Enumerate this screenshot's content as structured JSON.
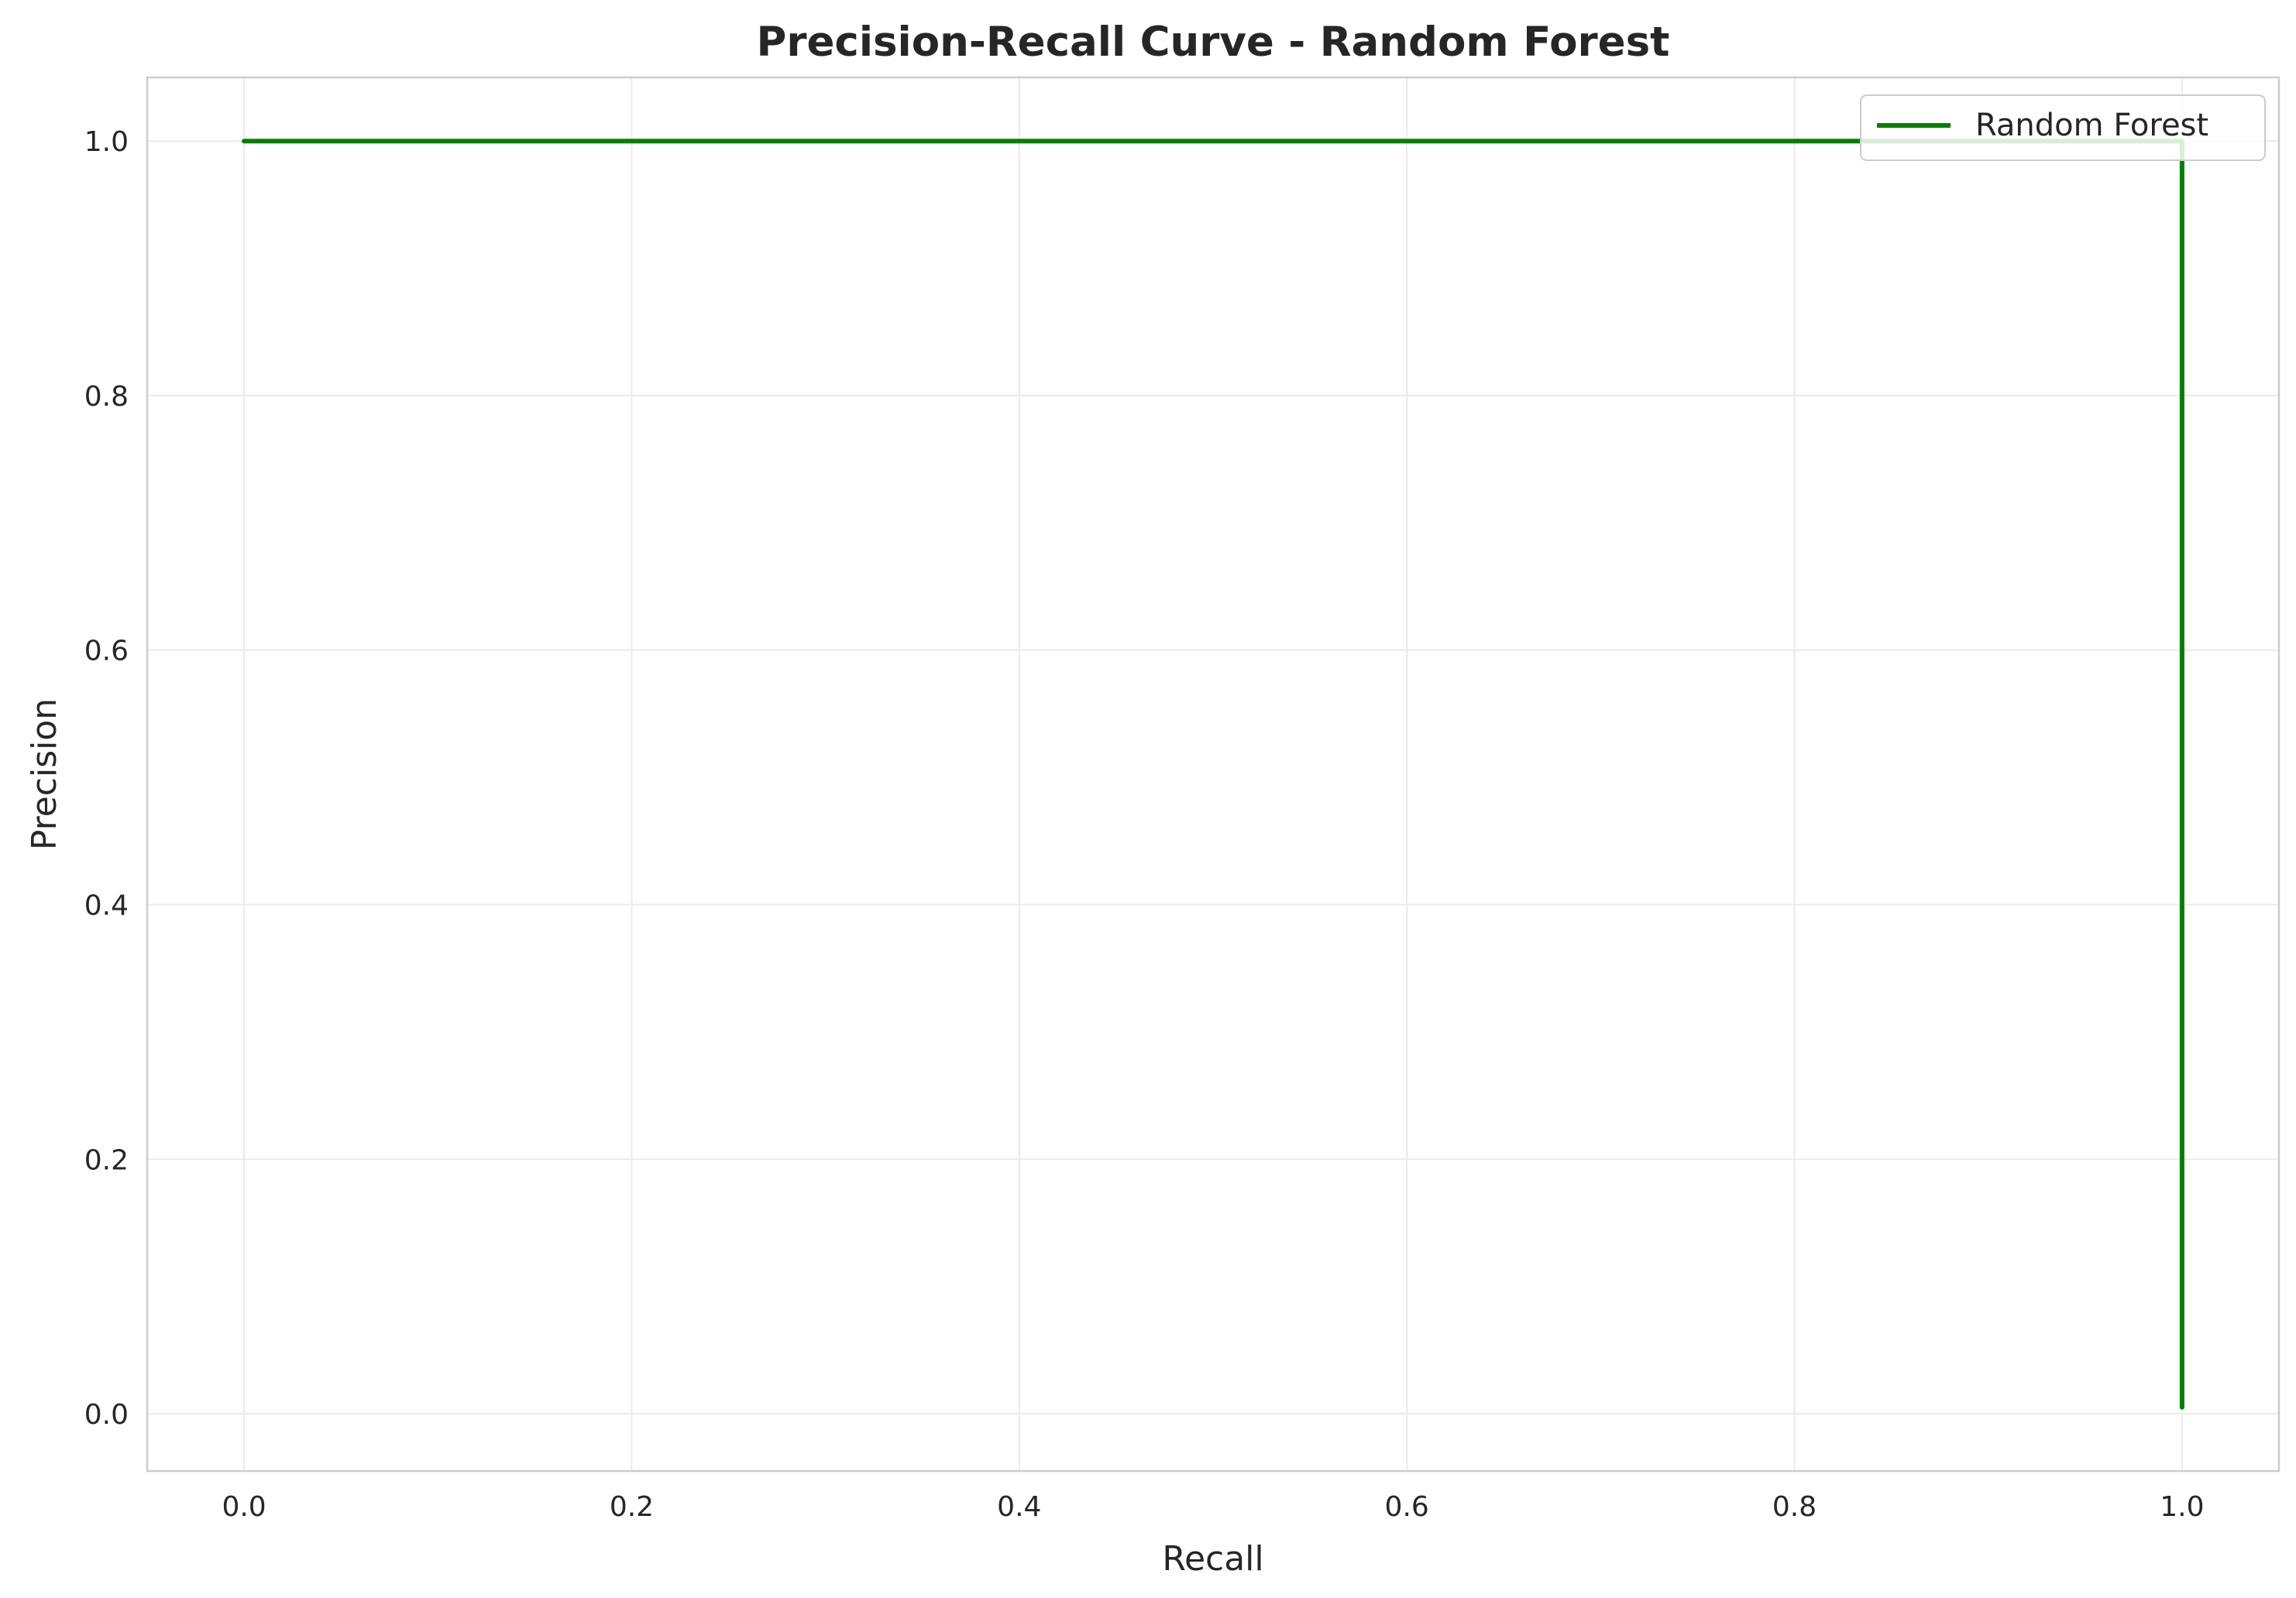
{
  "chart_data": {
    "type": "line",
    "title": "Precision-Recall Curve - Random Forest",
    "xlabel": "Recall",
    "ylabel": "Precision",
    "xlim": [
      -0.05,
      1.05
    ],
    "ylim": [
      -0.045,
      1.05
    ],
    "x_ticks": [
      "0.0",
      "0.2",
      "0.4",
      "0.6",
      "0.8",
      "1.0"
    ],
    "y_ticks": [
      "0.0",
      "0.2",
      "0.4",
      "0.6",
      "0.8",
      "1.0"
    ],
    "grid": true,
    "legend_position": "upper right",
    "series": [
      {
        "name": "Random Forest",
        "color": "#008000",
        "x": [
          0.0,
          1.0,
          1.0
        ],
        "y": [
          1.0,
          1.0,
          0.005
        ]
      }
    ]
  }
}
